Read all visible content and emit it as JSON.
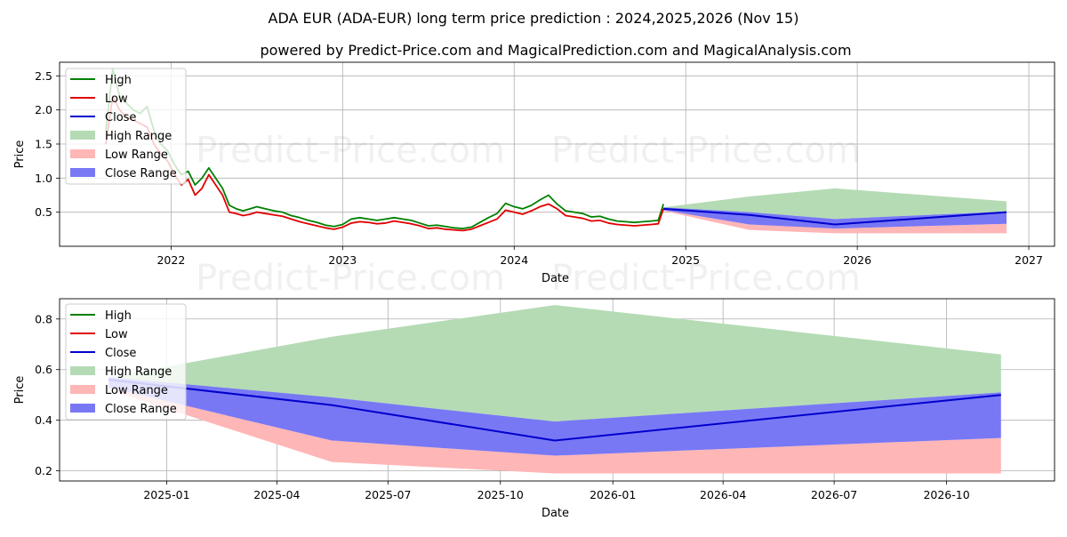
{
  "chart_title": "ADA EUR (ADA-EUR) long term price prediction : 2024,2025,2026 (Nov 15)",
  "chart_subtitle": "powered by Predict-Price.com and MagicalPrediction.com and MagicalAnalysis.com",
  "watermark": "Predict-Price.com",
  "colors": {
    "high": "#008000",
    "low": "#e00000",
    "close": "#0000cc",
    "high_range": "#b5dbb5",
    "low_range": "#ffb6b6",
    "close_range": "#7878f5",
    "grid": "#b0b0b0"
  },
  "legend": [
    "High",
    "Low",
    "Close",
    "High Range",
    "Low Range",
    "Close Range"
  ],
  "chart_data": [
    {
      "type": "line",
      "panel": "top",
      "xlabel": "Date",
      "ylabel": "Price",
      "xlim": [
        2021.35,
        2027.15
      ],
      "ylim": [
        0.0,
        2.7
      ],
      "x_ticks": [
        2022,
        2023,
        2024,
        2025,
        2026,
        2027
      ],
      "x_tick_labels": [
        "2022",
        "2023",
        "2024",
        "2025",
        "2026",
        "2027"
      ],
      "y_ticks": [
        0.5,
        1.0,
        1.5,
        2.0,
        2.5
      ],
      "y_tick_labels": [
        "0.5",
        "1.0",
        "1.5",
        "2.0",
        "2.5"
      ],
      "grid": true,
      "legend_position": "top-left",
      "history_low": {
        "x": [
          2021.62,
          2021.66,
          2021.7,
          2021.74,
          2021.78,
          2021.82,
          2021.86,
          2021.9,
          2021.94,
          2021.98,
          2022.02,
          2022.06,
          2022.1,
          2022.14,
          2022.18,
          2022.22,
          2022.26,
          2022.3,
          2022.34,
          2022.38,
          2022.42,
          2022.46,
          2022.5,
          2022.55,
          2022.6,
          2022.65,
          2022.7,
          2022.75,
          2022.8,
          2022.85,
          2022.9,
          2022.95,
          2023.0,
          2023.05,
          2023.1,
          2023.15,
          2023.2,
          2023.25,
          2023.3,
          2023.35,
          2023.4,
          2023.45,
          2023.5,
          2023.55,
          2023.6,
          2023.65,
          2023.7,
          2023.75,
          2023.8,
          2023.85,
          2023.9,
          2023.95,
          2024.0,
          2024.05,
          2024.1,
          2024.15,
          2024.2,
          2024.25,
          2024.3,
          2024.35,
          2024.4,
          2024.45,
          2024.5,
          2024.55,
          2024.6,
          2024.65,
          2024.7,
          2024.75,
          2024.8,
          2024.84,
          2024.87
        ],
        "y": [
          1.5,
          2.2,
          2.0,
          1.9,
          1.85,
          1.8,
          1.75,
          1.5,
          1.35,
          1.25,
          1.05,
          0.9,
          0.98,
          0.75,
          0.85,
          1.05,
          0.9,
          0.75,
          0.5,
          0.48,
          0.45,
          0.47,
          0.5,
          0.48,
          0.46,
          0.44,
          0.4,
          0.36,
          0.33,
          0.3,
          0.27,
          0.25,
          0.28,
          0.34,
          0.36,
          0.35,
          0.33,
          0.34,
          0.37,
          0.35,
          0.33,
          0.3,
          0.26,
          0.27,
          0.25,
          0.24,
          0.23,
          0.25,
          0.3,
          0.35,
          0.4,
          0.53,
          0.5,
          0.47,
          0.52,
          0.58,
          0.62,
          0.55,
          0.45,
          0.43,
          0.41,
          0.37,
          0.38,
          0.34,
          0.32,
          0.31,
          0.3,
          0.31,
          0.32,
          0.33,
          0.55
        ]
      },
      "history_high": {
        "x": [
          2021.62,
          2021.66,
          2021.7,
          2021.74,
          2021.78,
          2021.82,
          2021.86,
          2021.9,
          2021.94,
          2021.98,
          2022.02,
          2022.06,
          2022.1,
          2022.14,
          2022.18,
          2022.22,
          2022.26,
          2022.3,
          2022.34,
          2022.38,
          2022.42,
          2022.46,
          2022.5,
          2022.55,
          2022.6,
          2022.65,
          2022.7,
          2022.75,
          2022.8,
          2022.85,
          2022.9,
          2022.95,
          2023.0,
          2023.05,
          2023.1,
          2023.15,
          2023.2,
          2023.25,
          2023.3,
          2023.35,
          2023.4,
          2023.45,
          2023.5,
          2023.55,
          2023.6,
          2023.65,
          2023.7,
          2023.75,
          2023.8,
          2023.85,
          2023.9,
          2023.95,
          2024.0,
          2024.05,
          2024.1,
          2024.15,
          2024.2,
          2024.25,
          2024.3,
          2024.35,
          2024.4,
          2024.45,
          2024.5,
          2024.55,
          2024.6,
          2024.65,
          2024.7,
          2024.75,
          2024.8,
          2024.84,
          2024.87
        ],
        "y": [
          1.7,
          2.6,
          2.2,
          2.1,
          2.0,
          1.95,
          2.05,
          1.7,
          1.5,
          1.4,
          1.2,
          1.05,
          1.1,
          0.9,
          1.0,
          1.15,
          1.0,
          0.85,
          0.6,
          0.55,
          0.52,
          0.55,
          0.58,
          0.55,
          0.52,
          0.5,
          0.45,
          0.42,
          0.38,
          0.35,
          0.31,
          0.29,
          0.32,
          0.4,
          0.42,
          0.4,
          0.38,
          0.4,
          0.42,
          0.4,
          0.38,
          0.34,
          0.3,
          0.31,
          0.29,
          0.27,
          0.26,
          0.28,
          0.35,
          0.42,
          0.48,
          0.63,
          0.58,
          0.55,
          0.6,
          0.68,
          0.75,
          0.62,
          0.52,
          0.5,
          0.48,
          0.43,
          0.44,
          0.4,
          0.37,
          0.36,
          0.35,
          0.36,
          0.37,
          0.38,
          0.62
        ]
      },
      "forecast": {
        "x": [
          2024.87,
          2025.37,
          2025.87,
          2026.87
        ],
        "high_range_upper": [
          0.57,
          0.73,
          0.85,
          0.66
        ],
        "high_range_lower": [
          0.53,
          0.5,
          0.4,
          0.51
        ],
        "close_range_upper": [
          0.57,
          0.5,
          0.4,
          0.51
        ],
        "close_range_lower": [
          0.53,
          0.32,
          0.26,
          0.33
        ],
        "low_range_upper": [
          0.53,
          0.32,
          0.26,
          0.33
        ],
        "low_range_lower": [
          0.52,
          0.24,
          0.19,
          0.19
        ],
        "close": [
          0.55,
          0.46,
          0.32,
          0.5
        ]
      }
    },
    {
      "type": "area",
      "panel": "bottom",
      "xlabel": "Date",
      "ylabel": "Price",
      "xlim": [
        2024.76,
        2026.99
      ],
      "ylim": [
        0.16,
        0.88
      ],
      "x_ticks": [
        2025.0,
        2025.247,
        2025.496,
        2025.748,
        2026.0,
        2026.247,
        2026.496,
        2026.748
      ],
      "x_tick_labels": [
        "2025-01",
        "2025-04",
        "2025-07",
        "2025-10",
        "2026-01",
        "2026-04",
        "2026-07",
        "2026-10"
      ],
      "y_ticks": [
        0.2,
        0.4,
        0.6,
        0.8
      ],
      "y_tick_labels": [
        "0.2",
        "0.4",
        "0.6",
        "0.8"
      ],
      "grid": true,
      "legend_position": "top-left",
      "forecast": {
        "x": [
          2024.87,
          2025.37,
          2025.87,
          2026.87
        ],
        "high_range_upper": [
          0.57,
          0.73,
          0.855,
          0.66
        ],
        "high_range_lower": [
          0.53,
          0.49,
          0.395,
          0.51
        ],
        "close_range_upper": [
          0.57,
          0.49,
          0.395,
          0.51
        ],
        "close_range_lower": [
          0.53,
          0.32,
          0.26,
          0.33
        ],
        "low_range_upper": [
          0.53,
          0.32,
          0.26,
          0.33
        ],
        "low_range_lower": [
          0.52,
          0.235,
          0.19,
          0.19
        ],
        "close": [
          0.56,
          0.46,
          0.32,
          0.5
        ]
      }
    }
  ]
}
